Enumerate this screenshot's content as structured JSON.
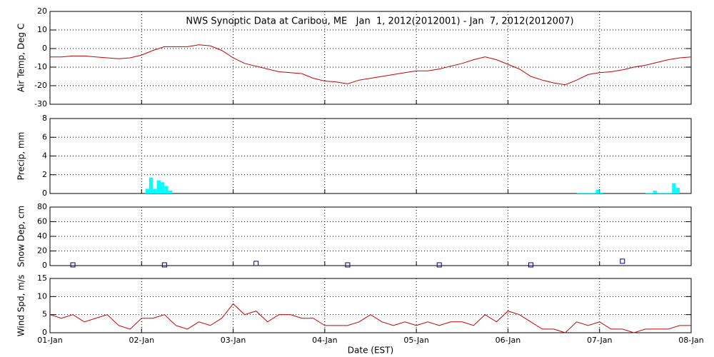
{
  "chart_data": [
    {
      "type": "line",
      "title": "NWS Synoptic Data at Caribou, ME   Jan  1, 2012(2012001) - Jan  7, 2012(2012007)",
      "ylabel": "Air Temp, Deg C",
      "x": [
        0,
        3,
        6,
        9,
        12,
        15,
        18,
        21,
        24,
        27,
        30,
        33,
        36,
        39,
        42,
        45,
        48,
        51,
        54,
        57,
        60,
        63,
        66,
        69,
        72,
        75,
        78,
        81,
        84,
        87,
        90,
        93,
        96,
        99,
        102,
        105,
        108,
        111,
        114,
        117,
        120,
        123,
        126,
        129,
        132,
        135,
        138,
        141,
        144,
        147,
        150,
        153,
        156,
        159,
        162,
        165,
        168
      ],
      "series": [
        {
          "name": "Air Temp",
          "color": "#cc0000",
          "values": [
            -4.5,
            -4.5,
            -4,
            -4,
            -4.5,
            -5,
            -5.5,
            -5,
            -3.5,
            -1,
            1,
            1,
            1,
            2,
            1.5,
            -1,
            -5,
            -8,
            -9.5,
            -11,
            -12.5,
            -13,
            -13.5,
            -16,
            -17.5,
            -18,
            -19,
            -17,
            -16,
            -15,
            -14,
            -13,
            -12,
            -12,
            -11,
            -9.5,
            -8,
            -6,
            -4.5,
            -6,
            -8.5,
            -11,
            -15,
            -17,
            -18.5,
            -19.5,
            -17,
            -14,
            -13,
            -12.5,
            -11.5,
            -10,
            -9,
            -7.5,
            -6,
            -5,
            -4.5
          ]
        }
      ],
      "xlim": [
        0,
        168
      ],
      "xticks": [
        0,
        24,
        48,
        72,
        96,
        120,
        144,
        168
      ],
      "ylim": [
        -30,
        20
      ],
      "yticks": [
        -30,
        -20,
        -10,
        0,
        10,
        20
      ],
      "grid": true
    },
    {
      "type": "bar",
      "ylabel": "Precip, mm",
      "x": [
        25,
        26,
        27,
        28,
        29,
        30,
        31,
        138,
        139,
        140,
        141,
        142,
        143,
        144,
        156,
        157,
        158,
        159,
        160,
        161,
        162,
        163,
        164
      ],
      "series": [
        {
          "name": "Precip",
          "color": "#00ffff",
          "values": [
            0.5,
            1.7,
            0.5,
            1.4,
            1.2,
            0.8,
            0.3,
            0.05,
            0.05,
            0.05,
            0.05,
            0.05,
            0.4,
            0.1,
            0.05,
            0.05,
            0.3,
            0.05,
            0.05,
            0.05,
            0.05,
            1.1,
            0.6
          ]
        }
      ],
      "xlim": [
        0,
        168
      ],
      "xticks": [
        0,
        24,
        48,
        72,
        96,
        120,
        144,
        168
      ],
      "ylim": [
        0,
        8
      ],
      "yticks": [
        0,
        2,
        4,
        6,
        8
      ],
      "grid": true
    },
    {
      "type": "scatter",
      "ylabel": "Snow Dep, cm",
      "x": [
        6,
        30,
        54,
        78,
        102,
        126,
        150
      ],
      "series": [
        {
          "name": "Snow Depth",
          "color": "#000080",
          "values": [
            1,
            1,
            3,
            1,
            1,
            1,
            6
          ]
        }
      ],
      "xlim": [
        0,
        168
      ],
      "xticks": [
        0,
        24,
        48,
        72,
        96,
        120,
        144,
        168
      ],
      "ylim": [
        0,
        80
      ],
      "yticks": [
        0,
        20,
        40,
        60,
        80
      ],
      "grid": true
    },
    {
      "type": "line",
      "ylabel": "Wind Spd, m/s",
      "xlabel": "Date (EST)",
      "x": [
        0,
        3,
        6,
        9,
        12,
        15,
        18,
        21,
        24,
        27,
        30,
        33,
        36,
        39,
        42,
        45,
        48,
        51,
        54,
        57,
        60,
        63,
        66,
        69,
        72,
        75,
        78,
        81,
        84,
        87,
        90,
        93,
        96,
        99,
        102,
        105,
        108,
        111,
        114,
        117,
        120,
        123,
        126,
        129,
        132,
        135,
        138,
        141,
        144,
        147,
        150,
        153,
        156,
        159,
        162,
        165,
        168
      ],
      "series": [
        {
          "name": "Wind Speed",
          "color": "#cc0000",
          "values": [
            5,
            4,
            5,
            3,
            4,
            5,
            2,
            1,
            4,
            4,
            5,
            2,
            1,
            3,
            2,
            4,
            8,
            5,
            6,
            3,
            5,
            5,
            4,
            4,
            2,
            2,
            2,
            3,
            5,
            3,
            2,
            3,
            2,
            3,
            2,
            3,
            3,
            2,
            5,
            3,
            6,
            5,
            3,
            1,
            1,
            0,
            3,
            2,
            3,
            1,
            1,
            0,
            1,
            1,
            1,
            2,
            2
          ]
        }
      ],
      "xlim": [
        0,
        168
      ],
      "xticks": [
        {
          "value": 0,
          "label": "01-Jan"
        },
        {
          "value": 24,
          "label": "02-Jan"
        },
        {
          "value": 48,
          "label": "03-Jan"
        },
        {
          "value": 72,
          "label": "04-Jan"
        },
        {
          "value": 96,
          "label": "05-Jan"
        },
        {
          "value": 120,
          "label": "06-Jan"
        },
        {
          "value": 144,
          "label": "07-Jan"
        },
        {
          "value": 168,
          "label": "08-Jan"
        }
      ],
      "ylim": [
        0,
        15
      ],
      "yticks": [
        0,
        5,
        10,
        15
      ],
      "grid": true
    }
  ]
}
